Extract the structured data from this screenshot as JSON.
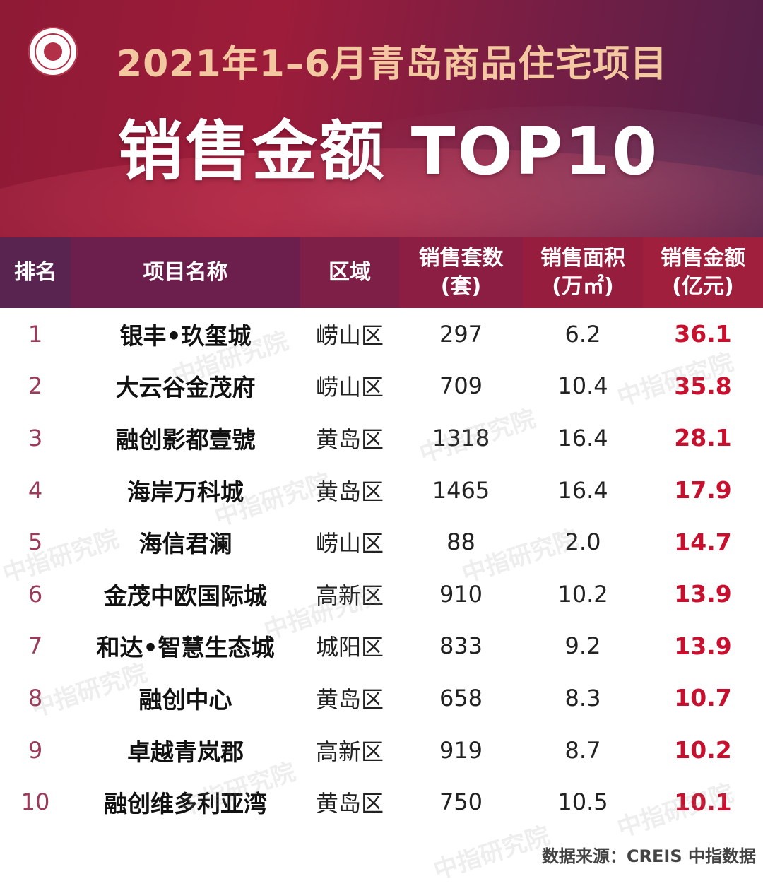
{
  "header": {
    "title_line1": "2021年1–6月青岛商品住宅项目",
    "title_line2": "销售金额 TOP10"
  },
  "table": {
    "columns": [
      {
        "line1": "排名",
        "line2": ""
      },
      {
        "line1": "项目名称",
        "line2": ""
      },
      {
        "line1": "区域",
        "line2": ""
      },
      {
        "line1": "销售套数",
        "line2": "(套)"
      },
      {
        "line1": "销售面积",
        "line2": "(万㎡)"
      },
      {
        "line1": "销售金额",
        "line2": "(亿元)"
      }
    ],
    "rows": [
      {
        "rank": "1",
        "name": "银丰•玖玺城",
        "district": "崂山区",
        "units": "297",
        "area": "6.2",
        "amount": "36.1"
      },
      {
        "rank": "2",
        "name": "大云谷金茂府",
        "district": "崂山区",
        "units": "709",
        "area": "10.4",
        "amount": "35.8"
      },
      {
        "rank": "3",
        "name": "融创影都壹號",
        "district": "黄岛区",
        "units": "1318",
        "area": "16.4",
        "amount": "28.1"
      },
      {
        "rank": "4",
        "name": "海岸万科城",
        "district": "黄岛区",
        "units": "1465",
        "area": "16.4",
        "amount": "17.9"
      },
      {
        "rank": "5",
        "name": "海信君澜",
        "district": "崂山区",
        "units": "88",
        "area": "2.0",
        "amount": "14.7"
      },
      {
        "rank": "6",
        "name": "金茂中欧国际城",
        "district": "高新区",
        "units": "910",
        "area": "10.2",
        "amount": "13.9"
      },
      {
        "rank": "7",
        "name": "和达•智慧生态城",
        "district": "城阳区",
        "units": "833",
        "area": "9.2",
        "amount": "13.9"
      },
      {
        "rank": "8",
        "name": "融创中心",
        "district": "黄岛区",
        "units": "658",
        "area": "8.3",
        "amount": "10.7"
      },
      {
        "rank": "9",
        "name": "卓越青岚郡",
        "district": "高新区",
        "units": "919",
        "area": "8.7",
        "amount": "10.2"
      },
      {
        "rank": "10",
        "name": "融创维多利亚湾",
        "district": "黄岛区",
        "units": "750",
        "area": "10.5",
        "amount": "10.1"
      }
    ]
  },
  "footer": {
    "source": "数据来源：CREIS 中指数据"
  },
  "watermark": {
    "text": "中指研究院"
  },
  "colors": {
    "banner_primary": "#9d1c3a",
    "banner_secondary": "#52204a",
    "title1": "#f3c7a0",
    "amount_highlight": "#c8102e"
  }
}
